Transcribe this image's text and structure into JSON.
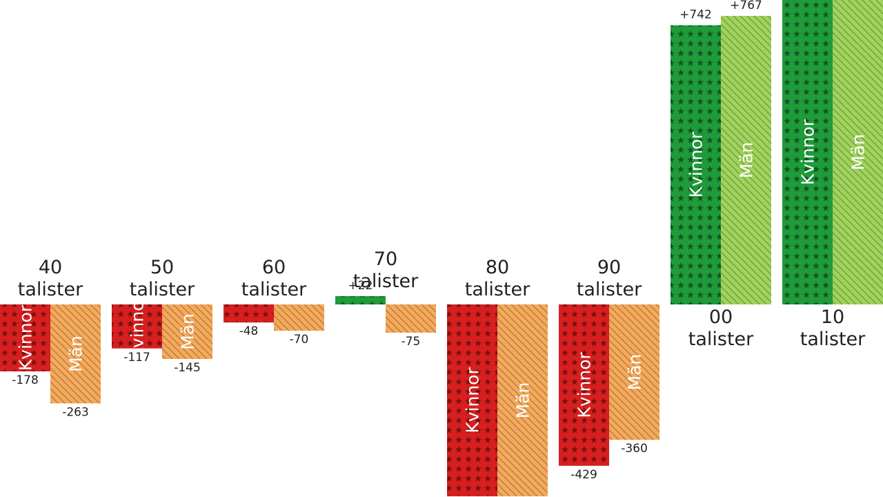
{
  "chart_data": {
    "type": "bar",
    "categories": [
      "40\ntalister",
      "50\ntalister",
      "60\ntalister",
      "70\ntalister",
      "80\ntalister",
      "90\ntalister",
      "00\ntalister",
      "10\ntalister"
    ],
    "series": [
      {
        "name": "Kvinnor",
        "values": [
          -178,
          -117,
          -48,
          22,
          -510,
          -429,
          742,
          1000
        ]
      },
      {
        "name": "Män",
        "values": [
          -263,
          -145,
          -70,
          -75,
          -510,
          -360,
          767,
          1000
        ]
      }
    ],
    "data_labels": {
      "Kvinnor": [
        "-178",
        "-117",
        "-48",
        "+22",
        "",
        "-429",
        "+742",
        ""
      ],
      "Män": [
        "-263",
        "-145",
        "-70",
        "-75",
        "",
        "-360",
        "+767",
        ""
      ]
    },
    "legend": "none",
    "grid": false,
    "colors": {
      "Kvinnor_negative": "#d71f1f",
      "Kvinnor_positive": "#1f9b3a",
      "Man_negative": "#f5a95a",
      "Man_positive": "#9fd35b"
    }
  }
}
